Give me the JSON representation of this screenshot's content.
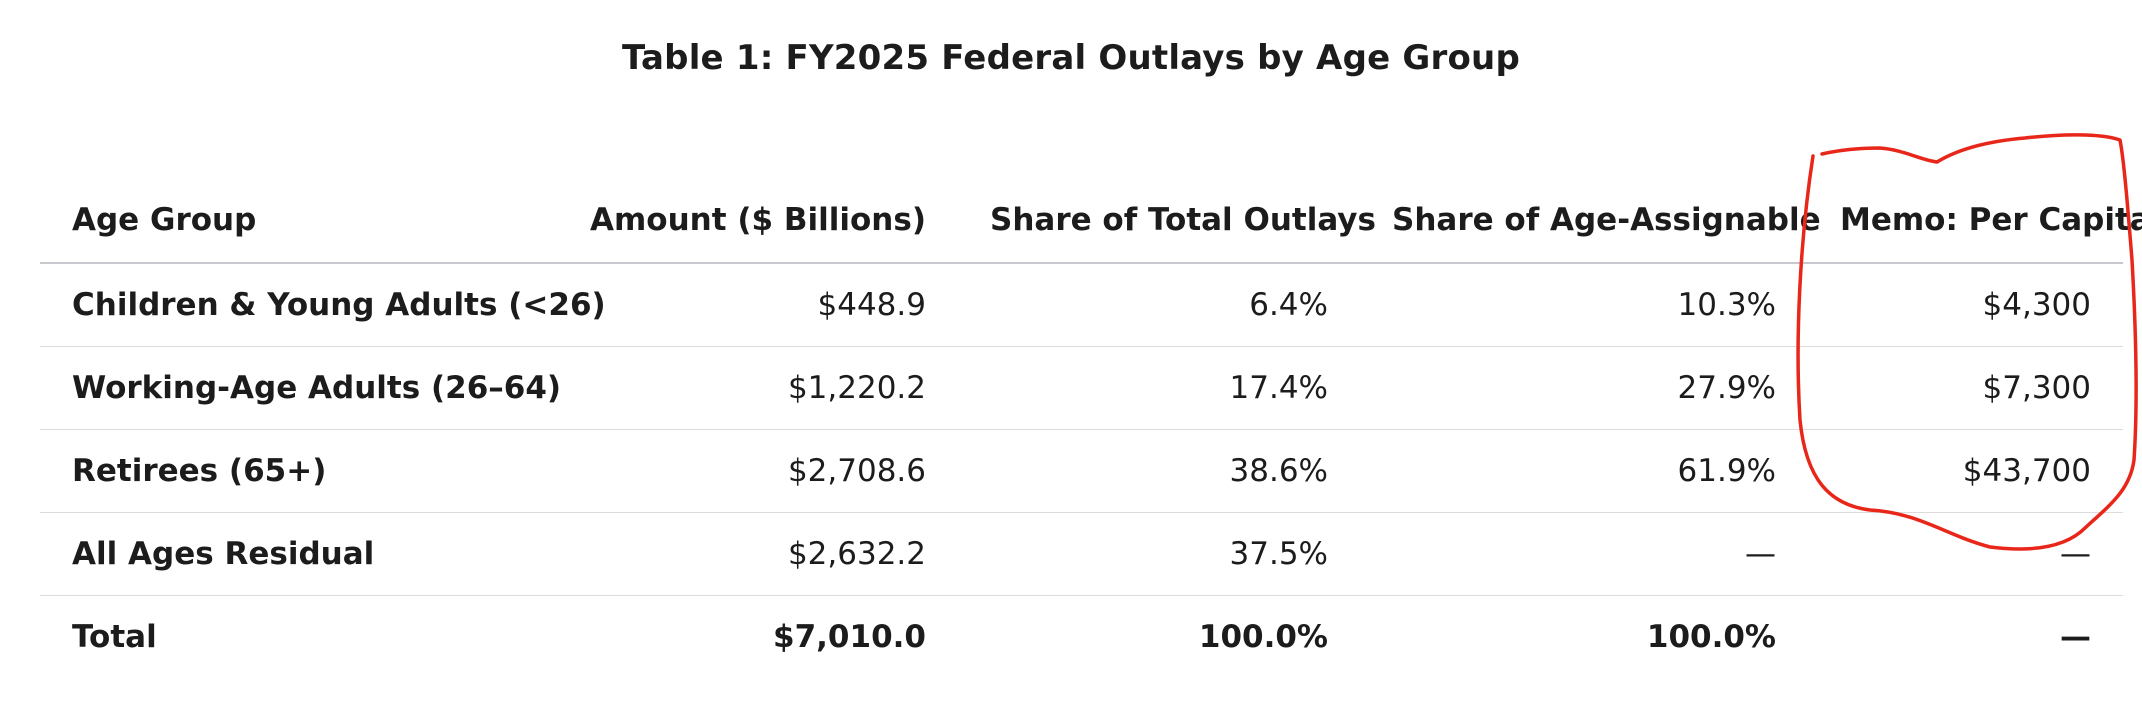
{
  "title": "Table 1: FY2025 Federal Outlays by Age Group",
  "colors": {
    "annotation": "#e8261a",
    "header_rule": "#c8c8cf",
    "row_rule": "#dcdcdc",
    "text": "#1c1c1c"
  },
  "table": {
    "columns": [
      "Age Group",
      "Amount ($ Billions)",
      "Share of Total Outlays",
      "Share of Age-Assignable",
      "Memo: Per Capita"
    ],
    "rows": [
      {
        "group": "Children & Young Adults (<26)",
        "amount": "$448.9",
        "share_total": "6.4%",
        "share_assignable": "10.3%",
        "per_capita": "$4,300"
      },
      {
        "group": "Working-Age Adults (26–64)",
        "amount": "$1,220.2",
        "share_total": "17.4%",
        "share_assignable": "27.9%",
        "per_capita": "$7,300"
      },
      {
        "group": "Retirees (65+)",
        "amount": "$2,708.6",
        "share_total": "38.6%",
        "share_assignable": "61.9%",
        "per_capita": "$43,700"
      },
      {
        "group": "All Ages Residual",
        "amount": "$2,632.2",
        "share_total": "37.5%",
        "share_assignable": "—",
        "per_capita": "—"
      }
    ],
    "total": {
      "group": "Total",
      "amount": "$7,010.0",
      "share_total": "100.0%",
      "share_assignable": "100.0%",
      "per_capita": "—"
    }
  },
  "annotation": {
    "shape": "hand-drawn-loop",
    "highlighted_column": "Memo: Per Capita"
  }
}
